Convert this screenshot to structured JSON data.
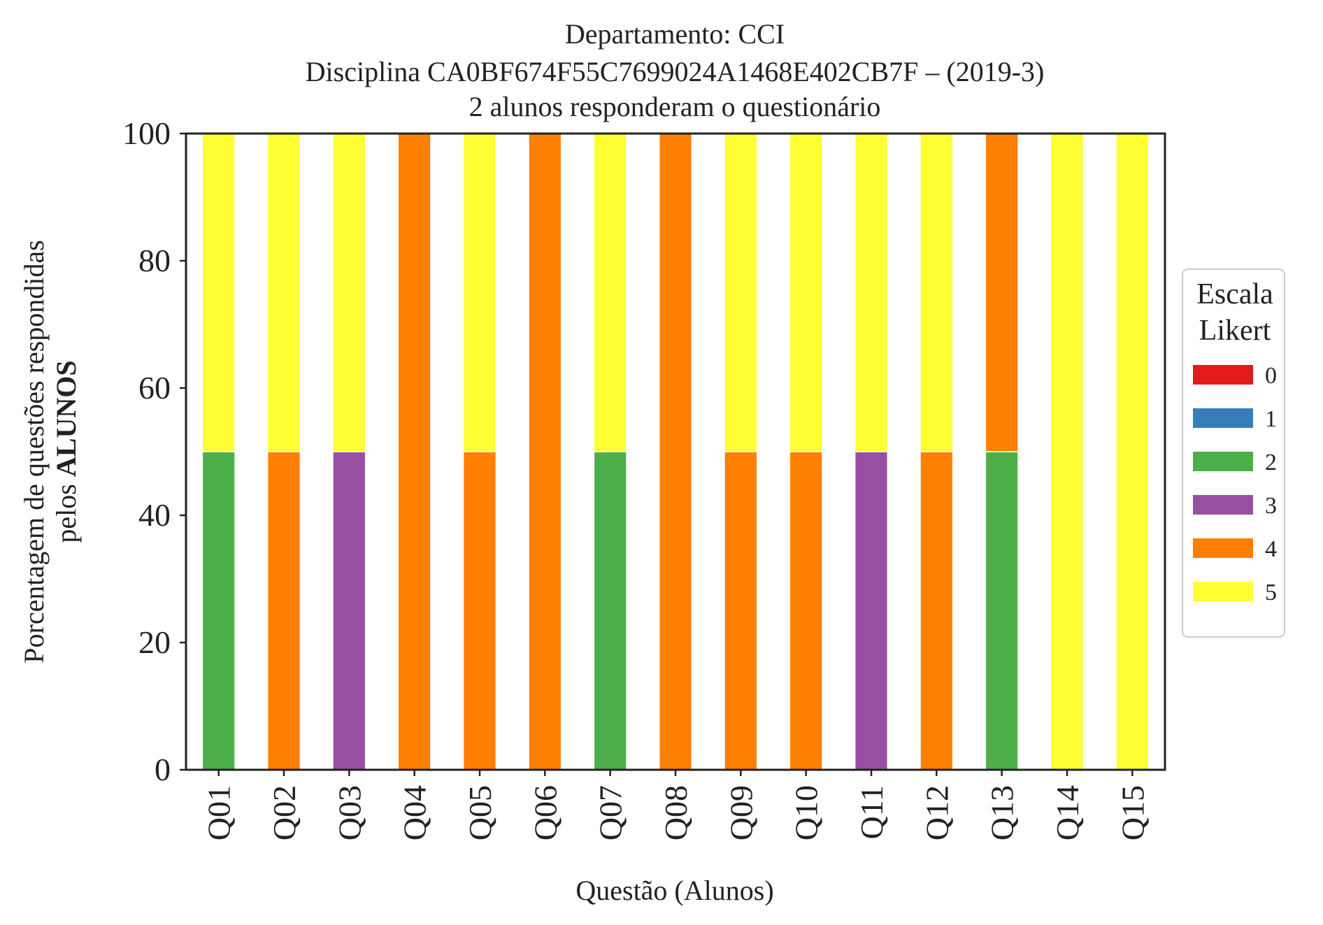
{
  "chart_data": {
    "type": "bar",
    "stacked": true,
    "title_lines": [
      "Departamento: CCI",
      "Disciplina CA0BF674F55C7699024A1468E402CB7F – (2019-3)",
      "2 alunos responderam o questionário"
    ],
    "xlabel": "Questão (Alunos)",
    "ylabel_line1": "Porcentagem de questões respondidas",
    "ylabel_line2_prefix": "pelos ",
    "ylabel_line2_bold": "ALUNOS",
    "ylim": [
      0,
      100
    ],
    "yticks": [
      "0",
      "20",
      "40",
      "60",
      "80",
      "100"
    ],
    "grid": false,
    "legend": {
      "placement": "right",
      "title_lines": [
        "Escala",
        "Likert"
      ]
    },
    "categories": [
      "Q01",
      "Q02",
      "Q03",
      "Q04",
      "Q05",
      "Q06",
      "Q07",
      "Q08",
      "Q09",
      "Q10",
      "Q11",
      "Q12",
      "Q13",
      "Q14",
      "Q15"
    ],
    "series": [
      {
        "name": "0",
        "color": "#e41a1c",
        "values": [
          0,
          0,
          0,
          0,
          0,
          0,
          0,
          0,
          0,
          0,
          0,
          0,
          0,
          0,
          0
        ]
      },
      {
        "name": "1",
        "color": "#377eb8",
        "values": [
          0,
          0,
          0,
          0,
          0,
          0,
          0,
          0,
          0,
          0,
          0,
          0,
          0,
          0,
          0
        ]
      },
      {
        "name": "2",
        "color": "#4daf4a",
        "values": [
          50,
          0,
          0,
          0,
          0,
          0,
          50,
          0,
          0,
          0,
          0,
          0,
          50,
          0,
          0
        ]
      },
      {
        "name": "3",
        "color": "#984ea3",
        "values": [
          0,
          0,
          50,
          0,
          0,
          0,
          0,
          0,
          0,
          0,
          50,
          0,
          0,
          0,
          0
        ]
      },
      {
        "name": "4",
        "color": "#ff7f00",
        "values": [
          0,
          50,
          0,
          100,
          50,
          100,
          0,
          100,
          50,
          50,
          0,
          50,
          50,
          0,
          0
        ]
      },
      {
        "name": "5",
        "color": "#ffff33",
        "values": [
          50,
          50,
          50,
          0,
          50,
          0,
          50,
          0,
          50,
          50,
          50,
          50,
          0,
          100,
          100
        ]
      }
    ]
  }
}
